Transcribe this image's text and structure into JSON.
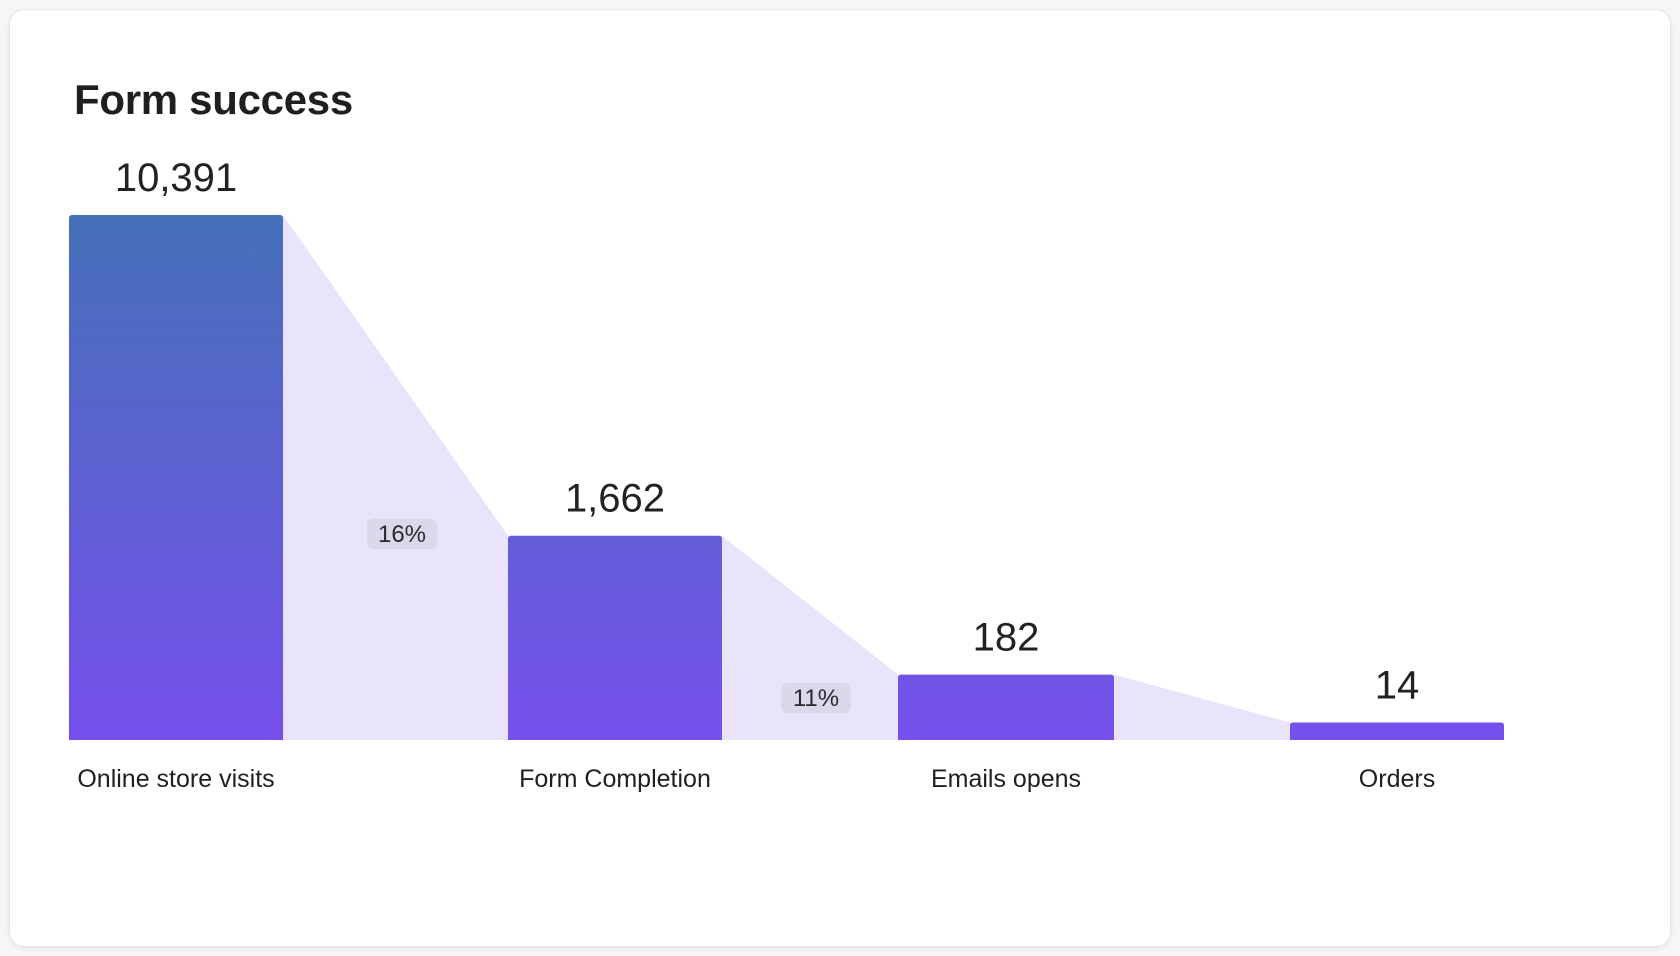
{
  "card": {
    "title": "Form success"
  },
  "colors": {
    "bar_top": "#4570b8",
    "bar_bottom": "#7650ec",
    "connector": "#e9e4fb",
    "pill": "#dcd8ec"
  },
  "chart_data": {
    "type": "bar",
    "title": "Form success",
    "categories": [
      "Online store visits",
      "Form Completion",
      "Emails opens",
      "Orders"
    ],
    "values": [
      10391,
      1662,
      182,
      14
    ],
    "value_labels": [
      "10,391",
      "1,662",
      "182",
      "14"
    ],
    "conversion_labels": [
      "16%",
      "11%"
    ],
    "xlabel": "",
    "ylabel": "",
    "grid": false,
    "legend": "none"
  }
}
